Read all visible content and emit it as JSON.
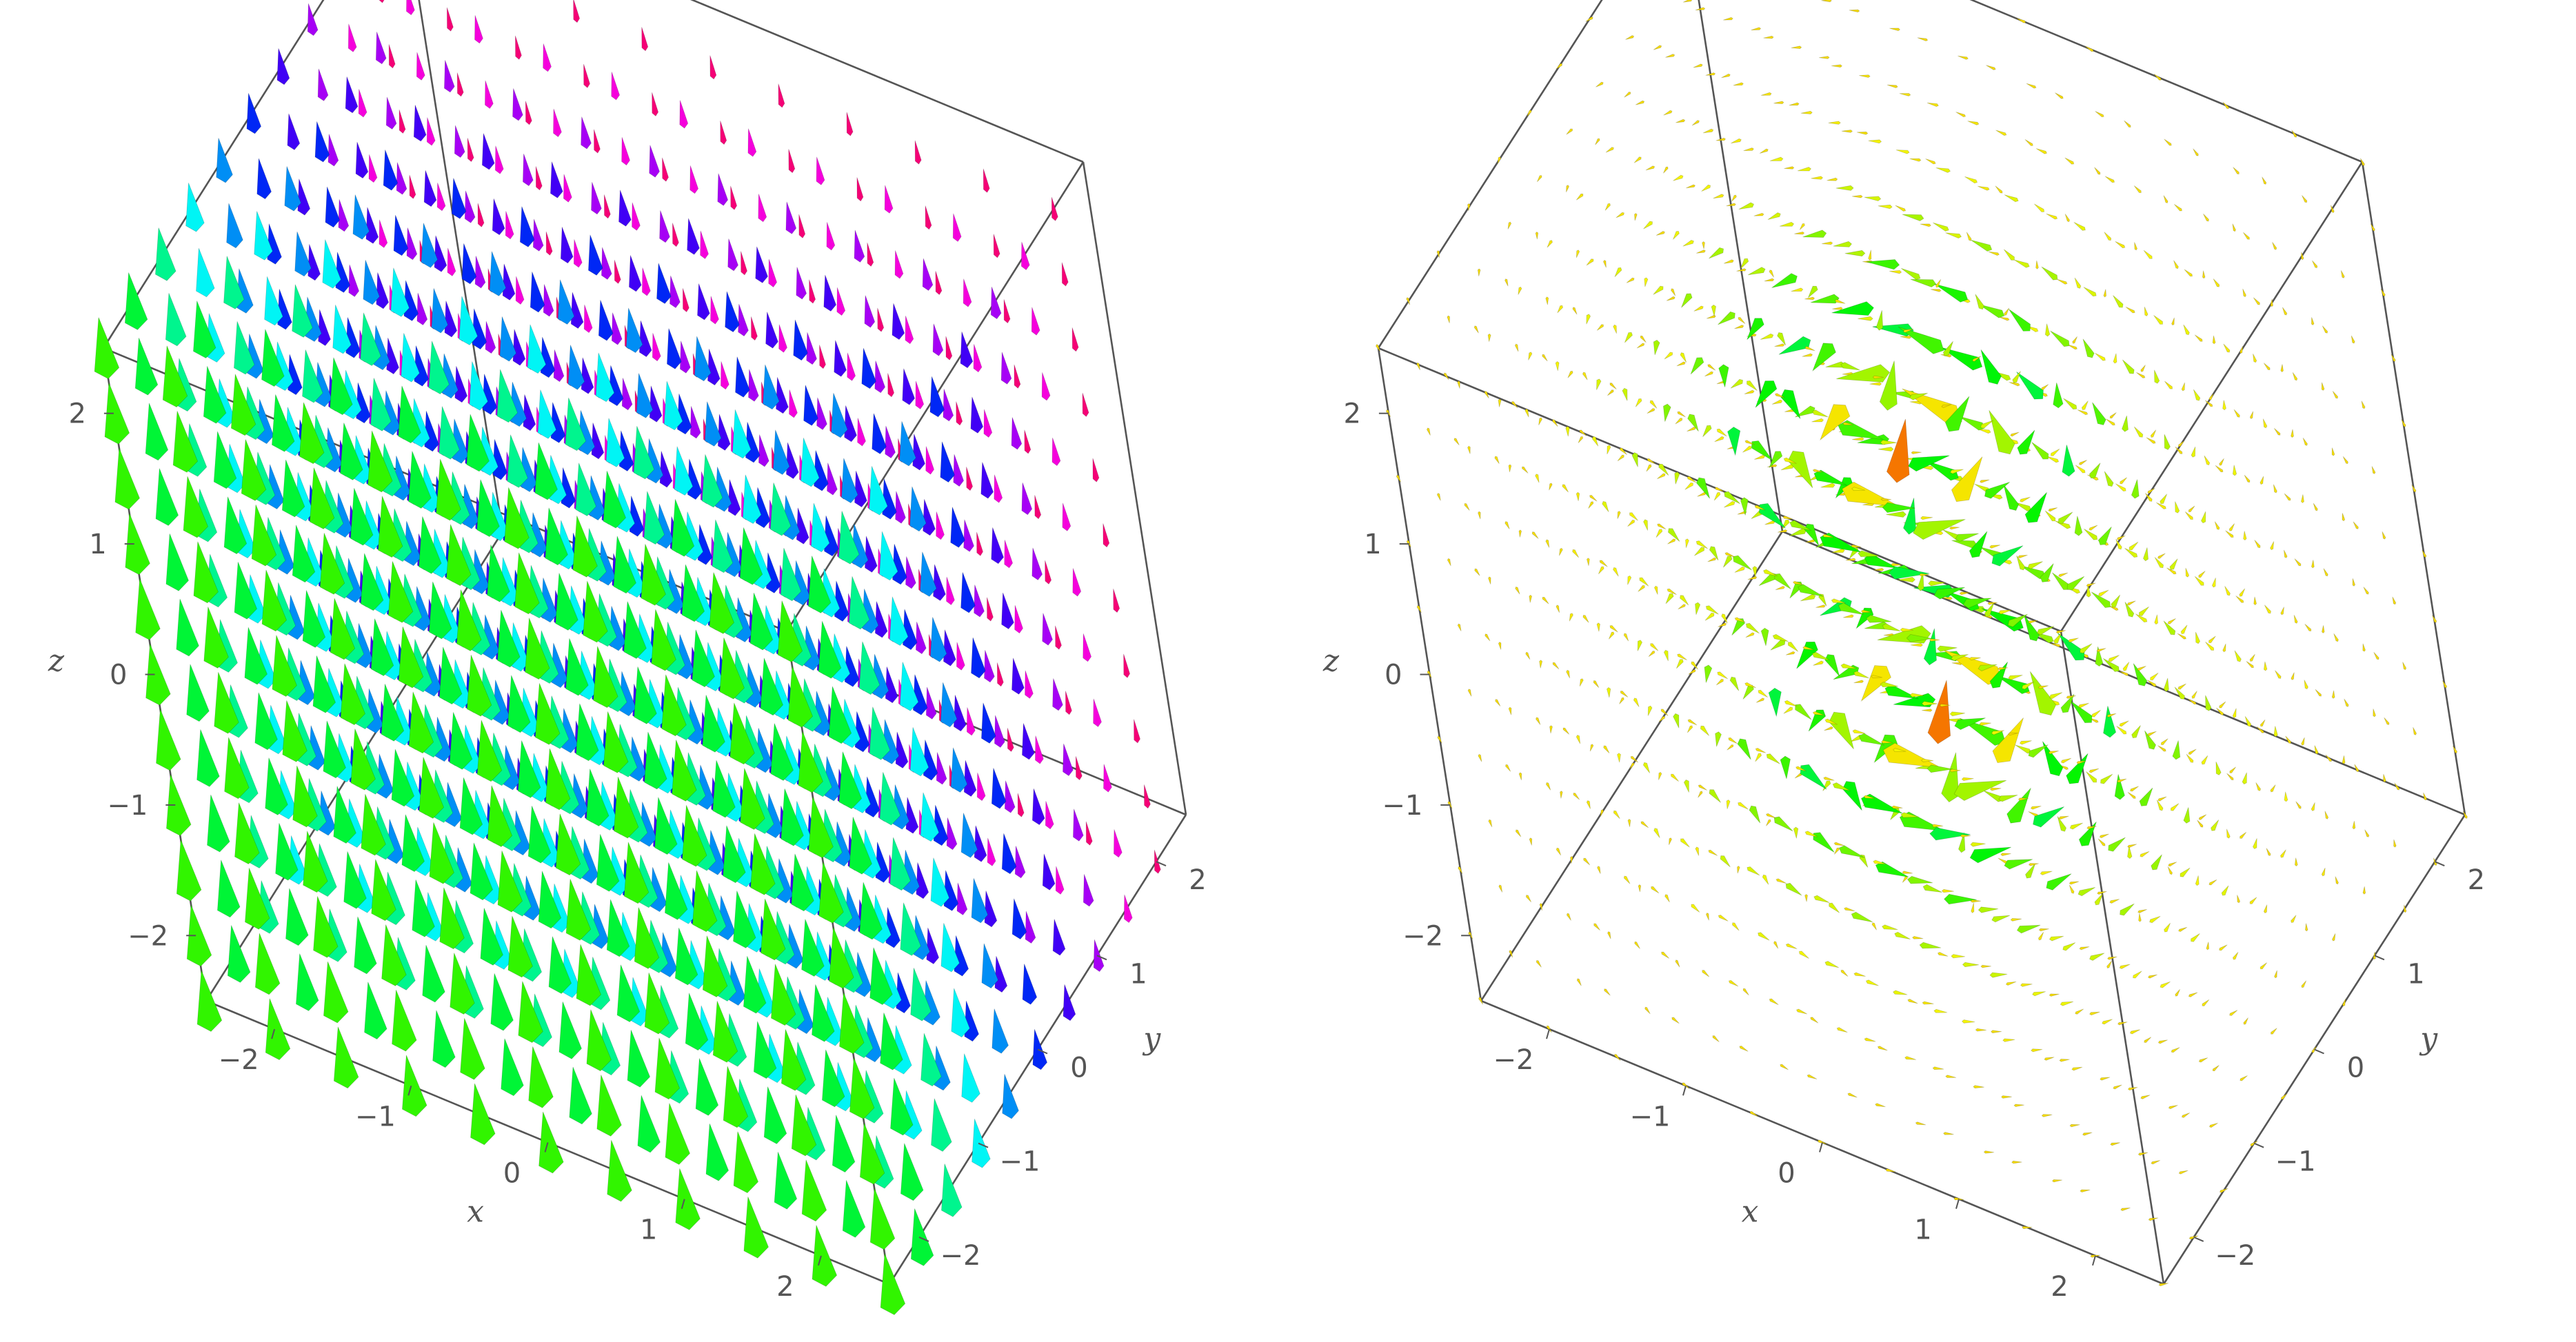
{
  "chart_data": [
    {
      "type": "vector_field_3d",
      "panel": "left",
      "xlabel": "x",
      "ylabel": "y",
      "zlabel": "z",
      "xlim": [
        -2.5,
        2.5
      ],
      "ylim": [
        -2.5,
        2.5
      ],
      "zlim": [
        -2.5,
        2.5
      ],
      "x_ticks": [
        "−2",
        "−1",
        "0",
        "1",
        "2"
      ],
      "y_ticks": [
        "−2",
        "−1",
        "0",
        "1",
        "2"
      ],
      "z_ticks": [
        "−2",
        "−1",
        "0",
        "1",
        "2"
      ],
      "grid": false,
      "field": "uniform +z direction, magnitude decreasing with y (largest at y = −2.5, vanishing at y = 2.5)",
      "color_scale": [
        "#ff1a1a",
        "#c800c8",
        "#7a00ff",
        "#1a33ff",
        "#00b4ff",
        "#00cc33",
        "#b4dc00",
        "#ff6600"
      ],
      "colors": {
        "box": "#555555",
        "tick_text": "#555555"
      }
    },
    {
      "type": "vector_field_3d",
      "panel": "right",
      "xlabel": "x",
      "ylabel": "y",
      "zlabel": "z",
      "xlim": [
        -2.5,
        2.5
      ],
      "ylim": [
        -2.5,
        2.5
      ],
      "zlim": [
        -2.5,
        2.5
      ],
      "x_ticks": [
        "−2",
        "−1",
        "0",
        "1",
        "2"
      ],
      "y_ticks": [
        "−2",
        "−1",
        "0",
        "1",
        "2"
      ],
      "z_ticks": [
        "−2",
        "−1",
        "0",
        "1",
        "2"
      ],
      "grid": false,
      "field": "azimuthal swirl about the z-axis, concentrated near z ≈ +1 and z ≈ −1",
      "color_scale": [
        "#ff1a1a",
        "#c800c8",
        "#7a00ff",
        "#1a33ff",
        "#00b4ff",
        "#00cc33",
        "#b4dc00",
        "#ff6600"
      ],
      "colors": {
        "box": "#555555",
        "tick_text": "#555555"
      }
    }
  ]
}
